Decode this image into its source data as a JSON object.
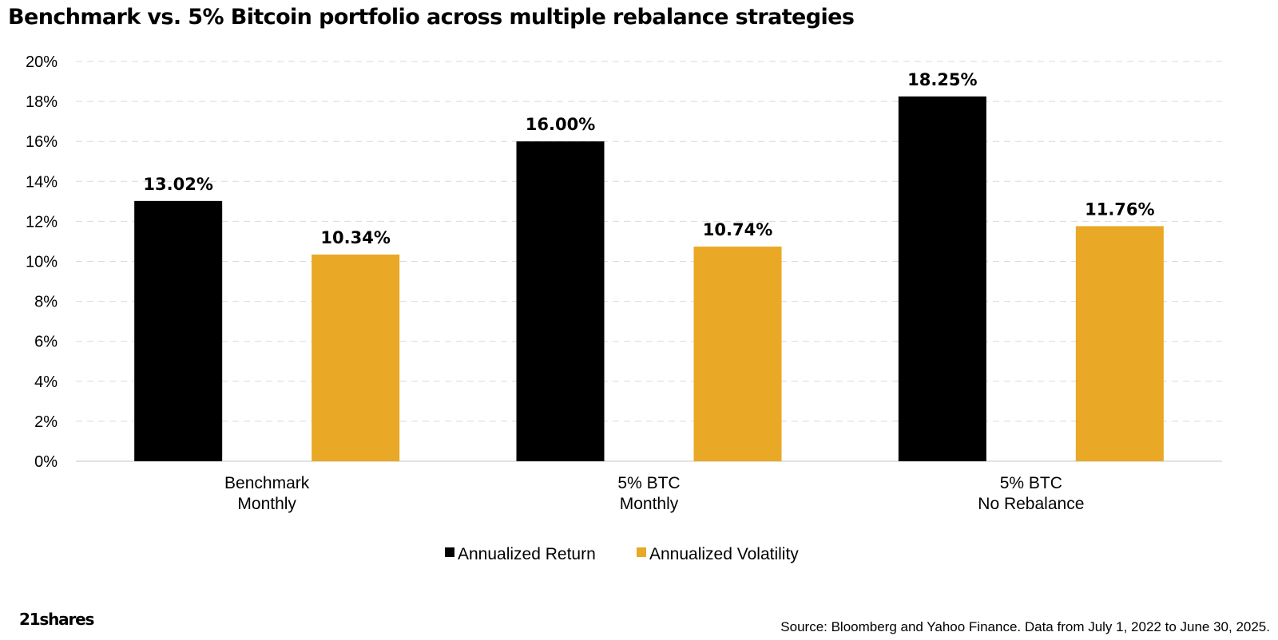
{
  "chart_data": {
    "type": "bar",
    "title": "Benchmark vs. 5% Bitcoin portfolio across multiple rebalance strategies",
    "categories": [
      [
        "Benchmark",
        "Monthly"
      ],
      [
        "5% BTC",
        "Monthly"
      ],
      [
        "5% BTC",
        "No Rebalance"
      ]
    ],
    "series": [
      {
        "name": "Annualized Return",
        "color": "#000000",
        "values": [
          13.02,
          16.0,
          18.25
        ],
        "labels": [
          "13.02%",
          "16.00%",
          "18.25%"
        ]
      },
      {
        "name": "Annualized Volatility",
        "color": "#E9A825",
        "values": [
          10.34,
          10.74,
          11.76
        ],
        "labels": [
          "10.34%",
          "10.74%",
          "11.76%"
        ]
      }
    ],
    "ylim": [
      0,
      20
    ],
    "yticks": [
      0,
      2,
      4,
      6,
      8,
      10,
      12,
      14,
      16,
      18,
      20
    ],
    "ytick_suffix": "%",
    "grid": true,
    "legend": "bottom-center",
    "xlabel": "",
    "ylabel": ""
  },
  "brand": {
    "logo_text": "21shares"
  },
  "footer": {
    "source": "Source: Bloomberg and Yahoo Finance. Data from July 1, 2022 to June 30, 2025."
  }
}
